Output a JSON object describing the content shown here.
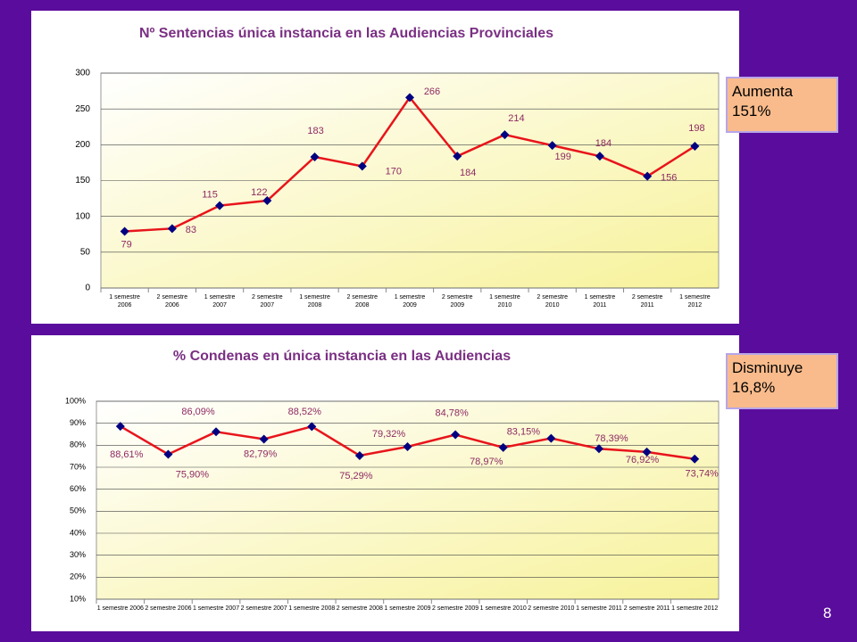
{
  "chart_data": [
    {
      "type": "line",
      "title": "Nº Sentencias única instancia en las Audiencias Provinciales",
      "categories": [
        "1 semestre\n2006",
        "2 semestre\n2006",
        "1 semestre\n2007",
        "2 semestre\n2007",
        "1 semestre\n2008",
        "2 semestre\n2008",
        "1 semestre\n2009",
        "2 semestre\n2009",
        "1 semestre\n2010",
        "2 semestre\n2010",
        "1 semestre\n2011",
        "2 semestre\n2011",
        "1 semestre\n2012"
      ],
      "values": [
        79,
        83,
        115,
        122,
        183,
        170,
        266,
        184,
        214,
        199,
        184,
        156,
        198
      ],
      "color": "#e8141b",
      "marker_color": "#000080",
      "label_color": "#8e2a63",
      "ylim": [
        0,
        300
      ],
      "yticks": [
        0,
        50,
        100,
        150,
        200,
        250,
        300
      ],
      "grid": true
    },
    {
      "type": "line",
      "title": "% Condenas en única instancia en las Audiencias",
      "categories": [
        "1 semestre 2006",
        "2 semestre 2006",
        "1 semestre 2007",
        "2 semestre 2007",
        "1 semestre 2008",
        "2 semestre 2008",
        "1 semestre 2009",
        "2 semestre 2009",
        "1 semestre 2010",
        "2 semestre 2010",
        "1 semestre 2011",
        "2 semestre 2011",
        "1 semestre 2012"
      ],
      "values": [
        88.61,
        75.9,
        86.09,
        82.79,
        88.52,
        75.29,
        79.32,
        84.78,
        78.97,
        83.15,
        78.39,
        76.92,
        73.74
      ],
      "value_labels": [
        "88,61%",
        "75,90%",
        "86,09%",
        "82,79%",
        "88,52%",
        "75,29%",
        "79,32%",
        "84,78%",
        "78,97%",
        "83,15%",
        "78,39%",
        "76,92%",
        "73,74%"
      ],
      "color": "#e8141b",
      "marker_color": "#000080",
      "label_color": "#8e2a63",
      "ylim": [
        10,
        100
      ],
      "yticks": [
        {
          "value": 10,
          "label": "10%"
        },
        {
          "value": 20,
          "label": "20%"
        },
        {
          "value": 30,
          "label": "30%"
        },
        {
          "value": 40,
          "label": "40%"
        },
        {
          "value": 50,
          "label": "50%"
        },
        {
          "value": 60,
          "label": "60%"
        },
        {
          "value": 70,
          "label": "70%"
        },
        {
          "value": 80,
          "label": "80%"
        },
        {
          "value": 90,
          "label": "90%"
        },
        {
          "value": 100,
          "label": "100%"
        }
      ],
      "grid": true
    }
  ],
  "callouts": [
    "Aumenta\n151%",
    "Disminuye\n16,8%"
  ],
  "page_number": "8"
}
